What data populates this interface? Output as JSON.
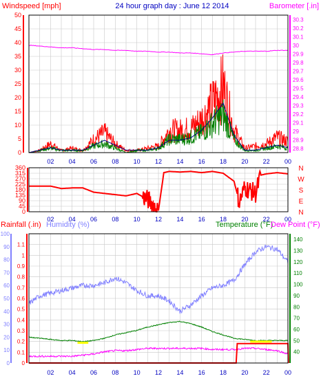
{
  "header": {
    "left": "Windspeed [mph]",
    "center": "24 hour graph day : June 12 2014",
    "right": "Barometer [.in]"
  },
  "colors": {
    "windspeed": "#ff0000",
    "gust": "#ff0000",
    "average": "#008000",
    "trend": "#000080",
    "barometer": "#ff00ff",
    "direction": "#ff0000",
    "rainfall": "#ff0000",
    "humidity": "#8080ff",
    "temperature": "#008000",
    "dewpoint": "#ff00ff",
    "solar": "#ffff00",
    "axis_blue": "#0000c0",
    "grid": "#c8c8c8"
  },
  "labels": {
    "rainfall": "Rainfall (.in)",
    "humidity": "Humidity (%)",
    "temperature": "Temperature (°F)",
    "dewpoint": "Dew Point (°F)"
  },
  "chart_data": [
    {
      "type": "line",
      "title": "24 hour graph day : June 12 2014",
      "x_ticks": [
        "02",
        "04",
        "06",
        "08",
        "10",
        "12",
        "14",
        "16",
        "18",
        "20",
        "22",
        "00"
      ],
      "y_left_label": "Windspeed [mph]",
      "y_left_ticks": [
        0,
        5,
        10,
        15,
        20,
        25,
        30,
        35,
        40,
        45,
        50
      ],
      "y_left_lim": [
        0,
        50
      ],
      "y_right_label": "Barometer [.in]",
      "y_right_ticks": [
        "28.8",
        "28.9",
        "29",
        "29.1",
        "29.2",
        "29.3",
        "29.4",
        "29.5",
        "29.6",
        "29.7",
        "29.8",
        "29.9",
        "30",
        "30.1",
        "30.2",
        "30.3"
      ],
      "y_right_lim": [
        28.75,
        30.35
      ],
      "x_hours": [
        0,
        1,
        2,
        3,
        4,
        5,
        6,
        7,
        8,
        9,
        10,
        11,
        12,
        13,
        14,
        15,
        16,
        17,
        18,
        19,
        20,
        21,
        22,
        23,
        24
      ],
      "series": [
        {
          "key": "barometer",
          "values": [
            30.0,
            29.99,
            29.98,
            29.97,
            29.97,
            29.96,
            29.95,
            29.95,
            29.94,
            29.94,
            29.93,
            29.93,
            29.92,
            29.92,
            29.91,
            29.91,
            29.9,
            29.89,
            29.91,
            29.92,
            29.93,
            29.93,
            29.93,
            29.94,
            29.94
          ]
        },
        {
          "key": "gust",
          "values": [
            0,
            1,
            4,
            1,
            2,
            1,
            6,
            9,
            4,
            1,
            1,
            2,
            3,
            10,
            10,
            11,
            15,
            22,
            30,
            10,
            2,
            3,
            4,
            7,
            5
          ]
        },
        {
          "key": "average",
          "values": [
            0,
            1,
            2,
            1,
            1,
            1,
            3,
            4,
            2,
            0,
            1,
            1,
            2,
            6,
            6,
            7,
            9,
            13,
            17,
            6,
            1,
            1,
            2,
            3,
            2
          ]
        },
        {
          "key": "trend",
          "values": [
            0,
            1,
            2,
            1,
            1,
            1,
            3,
            5,
            3,
            1,
            1,
            1,
            2,
            5,
            5,
            6,
            9,
            14,
            20,
            7,
            1,
            1,
            2,
            3,
            2
          ]
        }
      ]
    },
    {
      "type": "line",
      "x_ticks": [
        "02",
        "04",
        "06",
        "08",
        "10",
        "12",
        "14",
        "16",
        "18",
        "20",
        "22",
        "00"
      ],
      "y_left_ticks": [
        0,
        45,
        90,
        135,
        180,
        225,
        270,
        315,
        360
      ],
      "y_left_lim": [
        0,
        360
      ],
      "y_right_ticks": [
        "N",
        "W",
        "S",
        "E",
        "N"
      ],
      "series": [
        {
          "key": "direction",
          "x": [
            0,
            1,
            2,
            3,
            4,
            5,
            6,
            7,
            8,
            9,
            10,
            11,
            11.5,
            12,
            12.5,
            13,
            14,
            15,
            16,
            17,
            18,
            19,
            19.5,
            20,
            21,
            21.5,
            22,
            23,
            24
          ],
          "values": [
            210,
            210,
            210,
            190,
            195,
            195,
            160,
            150,
            140,
            130,
            150,
            100,
            60,
            10,
            320,
            330,
            325,
            330,
            320,
            330,
            315,
            250,
            80,
            200,
            150,
            300,
            310,
            320,
            310
          ]
        }
      ]
    },
    {
      "type": "line",
      "x_ticks": [
        "02",
        "04",
        "06",
        "08",
        "10",
        "12",
        "14",
        "16",
        "18",
        "20",
        "22",
        "00"
      ],
      "y_left_label": "Rainfall (.in)",
      "y_left_ticks": [
        "0",
        "0.1",
        "0.2",
        "0.3",
        "0.4",
        "0.5",
        "0.6",
        "0.7",
        "0.8",
        "0.9",
        "1",
        "1.1"
      ],
      "y_left_lim": [
        0,
        1.2
      ],
      "y_humidity_label": "Humidity (%)",
      "y_humidity_ticks": [
        0,
        10,
        20,
        30,
        40,
        50,
        60,
        70,
        80,
        90,
        100
      ],
      "y_humidity_lim": [
        0,
        100
      ],
      "y_right_label": "Temperature (°F)",
      "y_right2_label": "Dew Point (°F)",
      "y_right_ticks": [
        40,
        50,
        60,
        70,
        80,
        90,
        100,
        110,
        120,
        130,
        140
      ],
      "y_right_lim": [
        30,
        145
      ],
      "series": [
        {
          "key": "humidity",
          "x": [
            0,
            1,
            2,
            3,
            4,
            5,
            6,
            7,
            8,
            9,
            10,
            11,
            12,
            13,
            14,
            15,
            16,
            17,
            18,
            19,
            20,
            21,
            22,
            23,
            24
          ],
          "values": [
            46,
            52,
            54,
            56,
            58,
            60,
            60,
            62,
            66,
            62,
            56,
            52,
            52,
            48,
            40,
            45,
            52,
            58,
            60,
            64,
            76,
            86,
            90,
            88,
            78
          ]
        },
        {
          "key": "temperature",
          "x": [
            0,
            1,
            2,
            3,
            4,
            5,
            6,
            7,
            8,
            9,
            10,
            11,
            12,
            13,
            14,
            15,
            16,
            17,
            18,
            19,
            20,
            21,
            22,
            23,
            24
          ],
          "values": [
            53,
            52,
            51,
            50,
            50,
            49,
            50,
            52,
            55,
            57,
            59,
            62,
            64,
            66,
            67,
            65,
            62,
            58,
            55,
            52,
            51,
            50,
            50,
            50,
            50
          ]
        },
        {
          "key": "dewpoint",
          "x": [
            0,
            1,
            2,
            3,
            4,
            5,
            6,
            7,
            8,
            9,
            10,
            11,
            12,
            13,
            14,
            15,
            16,
            17,
            18,
            19,
            20,
            21,
            22,
            23,
            24
          ],
          "values": [
            36,
            36,
            36,
            36,
            36,
            37,
            38,
            40,
            41,
            41,
            42,
            43,
            43,
            43,
            43,
            43,
            43,
            42,
            42,
            42,
            43,
            43,
            42,
            41,
            38
          ]
        },
        {
          "key": "rainfall",
          "x": [
            0,
            19.2,
            19.3,
            24,
            24.05
          ],
          "values": [
            0,
            0,
            0.18,
            0.18,
            0
          ]
        },
        {
          "key": "solar",
          "x": [
            4.5,
            5.5
          ],
          "values": [
            48,
            48
          ]
        },
        {
          "key": "solar",
          "x": [
            20.5,
            22.5
          ],
          "values": [
            49,
            49
          ]
        }
      ]
    }
  ]
}
